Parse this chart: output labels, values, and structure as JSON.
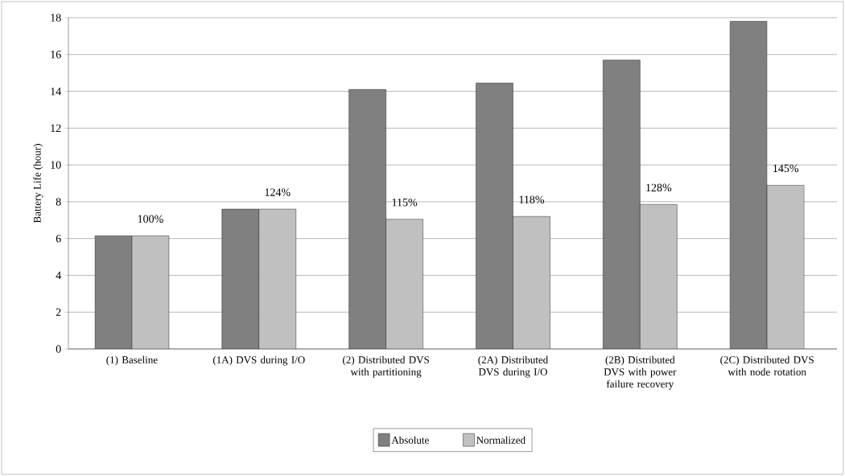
{
  "chart_data": {
    "type": "bar",
    "ylabel": "Battery Life (hour)",
    "categories": [
      "(1) Baseline",
      "(1A) DVS during I/O",
      "(2) Distributed DVS with partitioning",
      "(2A) Distributed DVS during I/O",
      "(2B) Distributed DVS with power failure recovery",
      "(2C) Distributed DVS with node rotation"
    ],
    "series": [
      {
        "name": "Absolute",
        "color": "#808080",
        "values": [
          6.15,
          7.6,
          14.1,
          14.45,
          15.7,
          17.8
        ]
      },
      {
        "name": "Normalized",
        "color": "#c0c0c0",
        "values": [
          6.15,
          7.6,
          7.05,
          7.2,
          7.85,
          8.9
        ]
      }
    ],
    "annotations": [
      "100%",
      "124%",
      "115%",
      "118%",
      "128%",
      "145%"
    ],
    "ylim": [
      0,
      18
    ],
    "yticks": [
      0,
      2,
      4,
      6,
      8,
      10,
      12,
      14,
      16,
      18
    ],
    "grid": "y",
    "legend": "bottom"
  }
}
